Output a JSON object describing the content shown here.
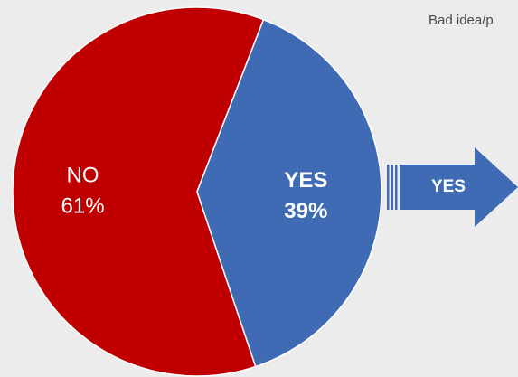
{
  "header": {
    "caption": "Bad idea/p"
  },
  "chart_data": {
    "type": "pie",
    "slices": [
      {
        "label": "NO",
        "value": 61,
        "display": "61%",
        "color": "#c00000"
      },
      {
        "label": "YES",
        "value": 39,
        "display": "39%",
        "color": "#3f6bb5"
      }
    ]
  },
  "arrow": {
    "label": "YES",
    "color": "#3f6bb5"
  }
}
